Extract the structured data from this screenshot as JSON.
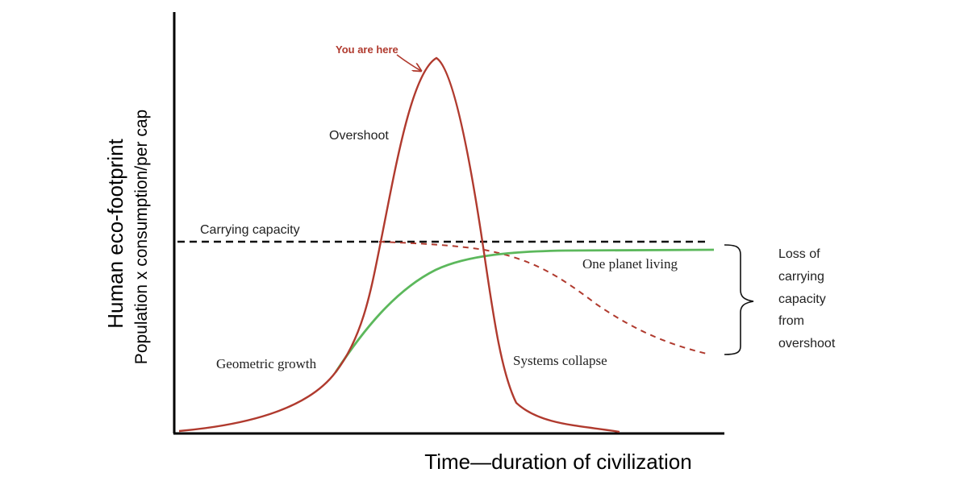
{
  "labels": {
    "you_are_here": "You are here",
    "overshoot": "Overshoot",
    "carrying_capacity": "Carrying capacity",
    "one_planet_living": "One planet living",
    "geometric_growth": "Geometric growth",
    "systems_collapse": "Systems collapse",
    "loss_line_1": "Loss of",
    "loss_line_2": "carrying",
    "loss_line_3": "capacity",
    "loss_line_4": "from",
    "loss_line_5": "overshoot"
  },
  "axes": {
    "y_title": "Human eco-footprint",
    "y_subtitle": "Population x consumption/per cap",
    "x_title": "Time—duration of civilization"
  },
  "colors": {
    "overshoot_curve": "#b03a2e",
    "one_planet_curve": "#5cb85c",
    "carrying_capacity_line": "#111111",
    "declining_capacity_line": "#b03a2e",
    "axis": "#000000",
    "you_are_here_text": "#b03a2e"
  }
}
